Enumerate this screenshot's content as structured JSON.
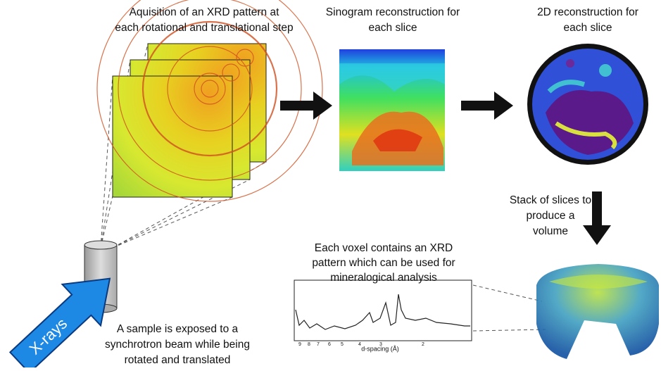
{
  "captions": {
    "acquisition": [
      "Aquisition of an XRD pattern at",
      "each rotational and translational step"
    ],
    "sinogram": [
      "Sinogram reconstruction for",
      "each slice"
    ],
    "reconstruction": [
      "2D reconstruction for",
      "each slice"
    ],
    "stack": [
      "Stack of slices to",
      "produce a",
      "volume"
    ],
    "voxel": [
      "Each voxel contains an XRD",
      "pattern which can be used for",
      "mineralogical analysis"
    ],
    "sample": [
      "A sample is exposed to a",
      "synchrotron beam while being",
      "rotated and translated"
    ]
  },
  "beam_label": "X-rays",
  "plot": {
    "x_label": "d-spacing (Å)",
    "x_ticks": [
      9,
      8,
      7,
      6,
      5,
      4,
      3,
      2
    ]
  }
}
